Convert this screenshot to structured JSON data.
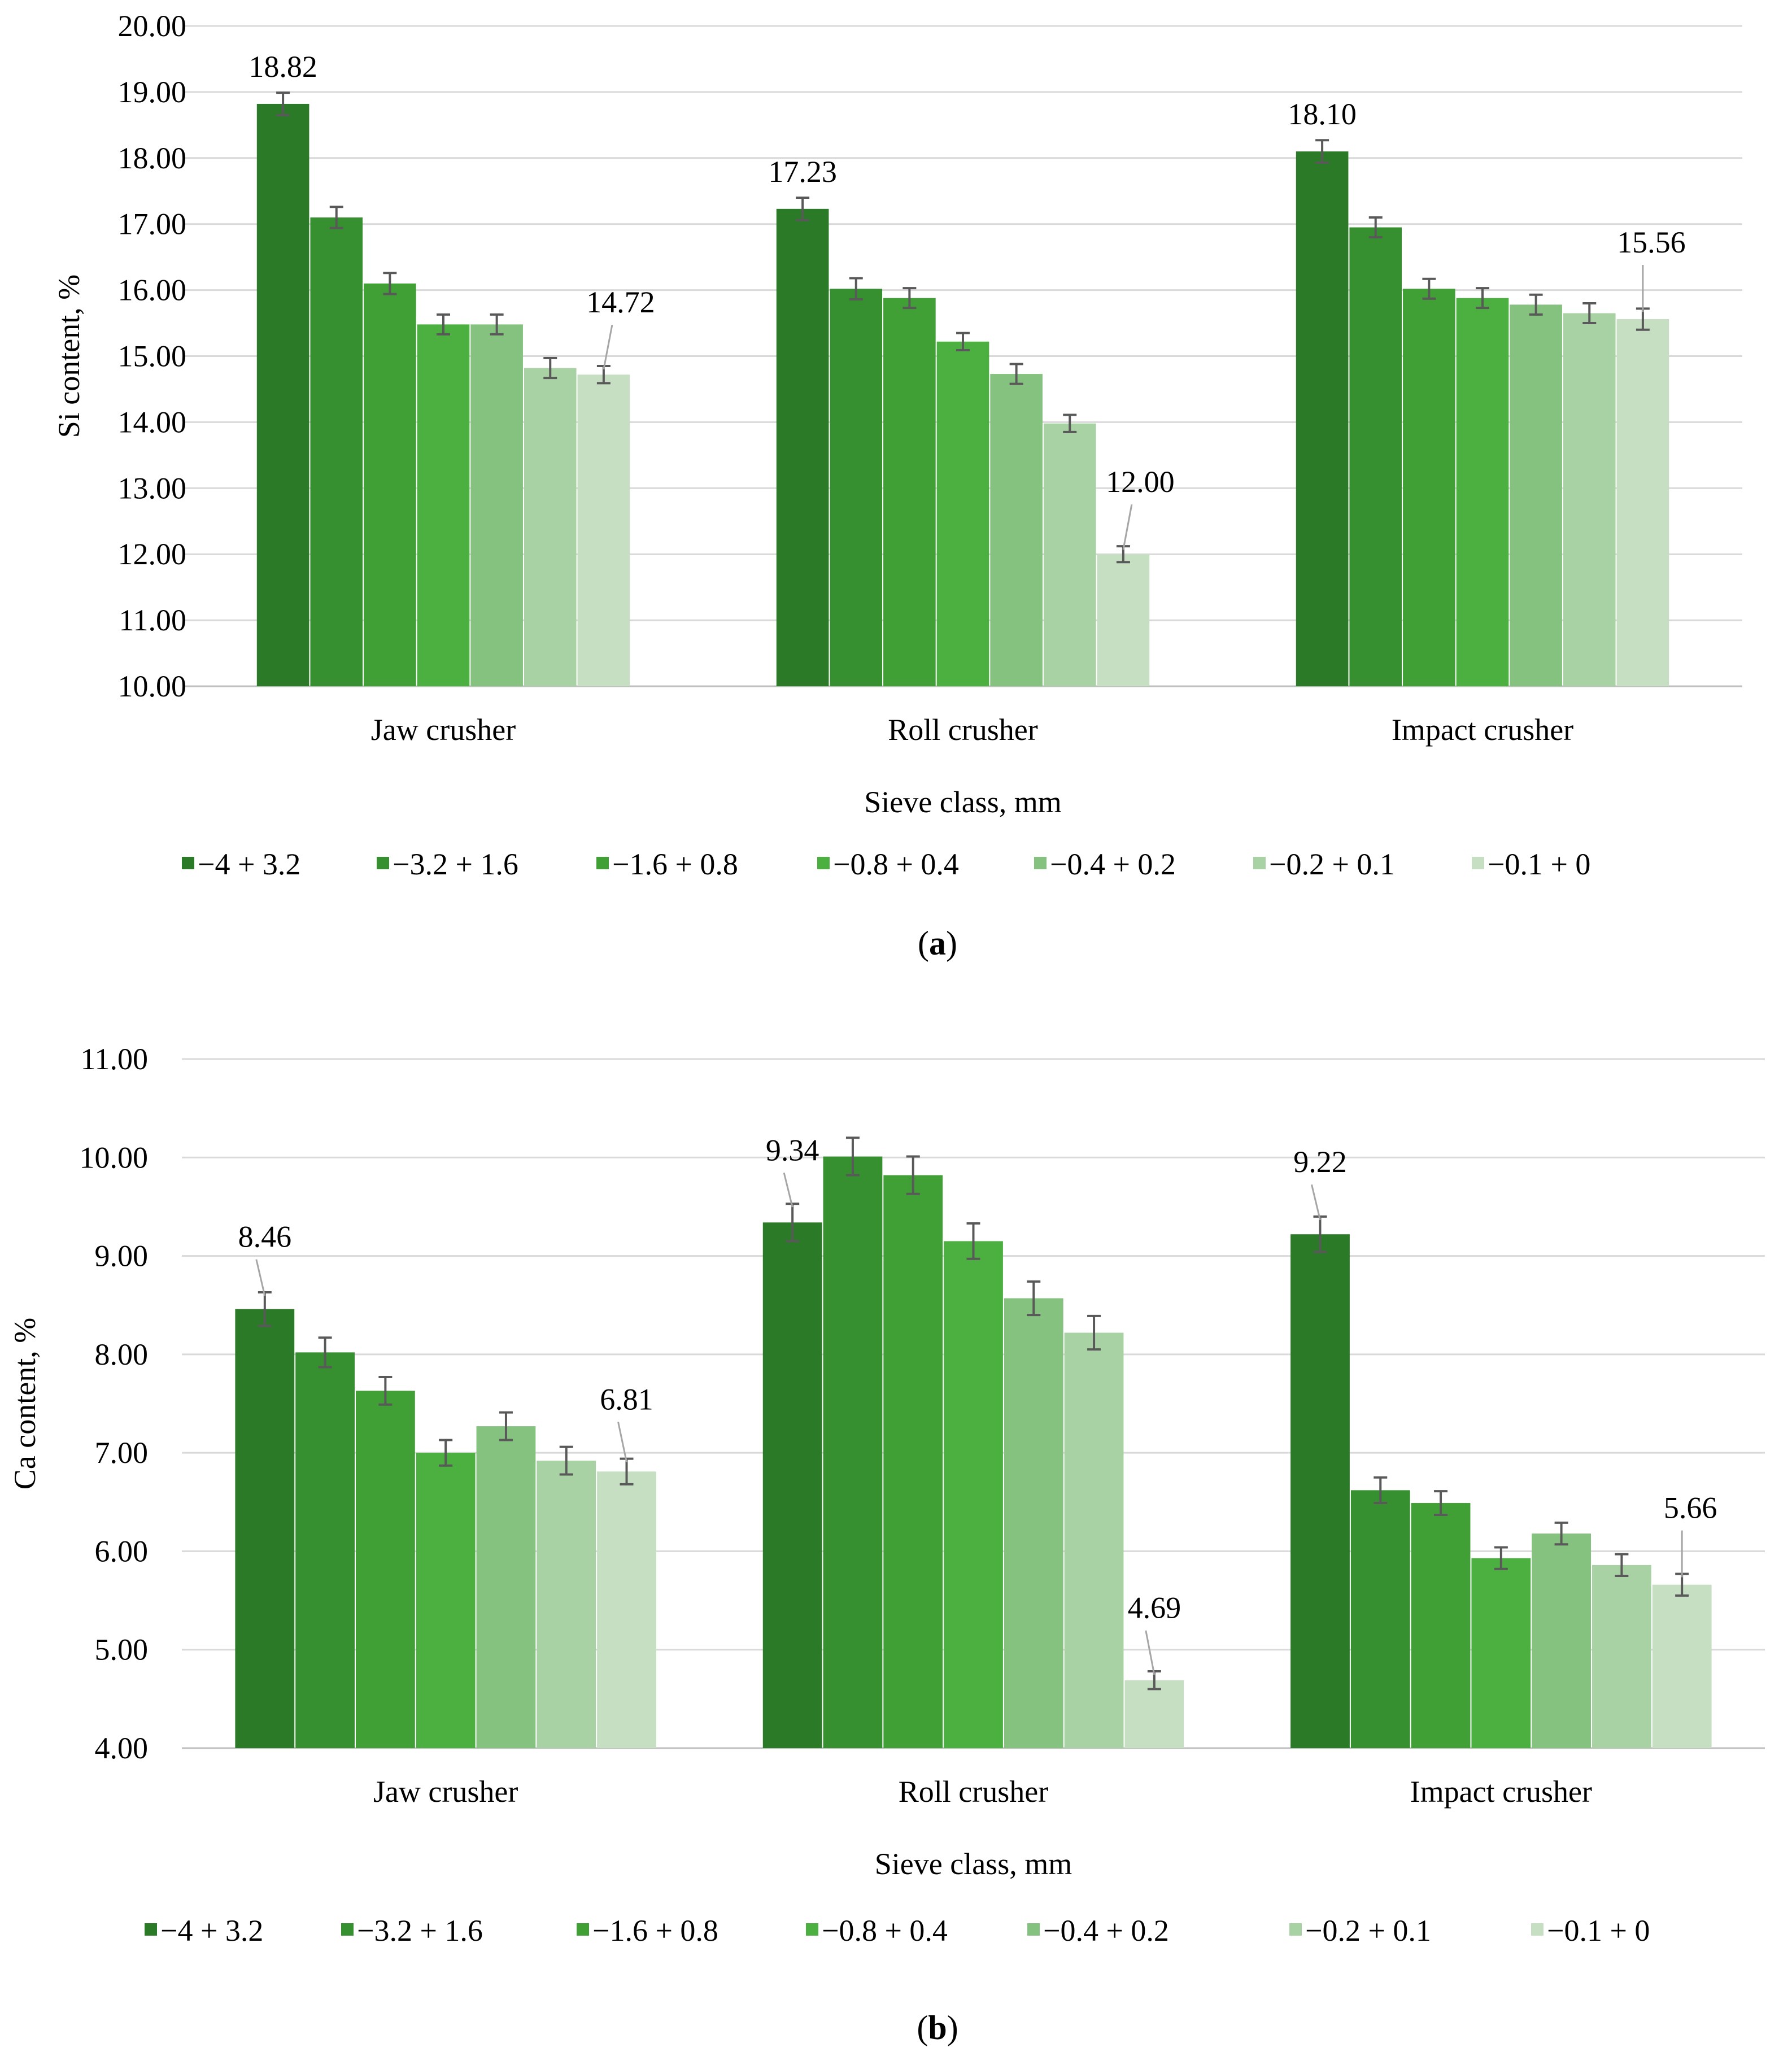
{
  "colors": {
    "series": [
      "#2b7a28",
      "#36902f",
      "#40a035",
      "#4bb03f",
      "#85c27f",
      "#a9d2a4",
      "#c6dfc3"
    ],
    "grid": "#d9d9d9",
    "error_bar": "#595959",
    "leader": "#a6a6a6"
  },
  "chart_data": [
    {
      "type": "bar",
      "panel_label": "(a)",
      "panel_letter": "a",
      "ylabel": "Si content, %",
      "xlabel": "Sieve class, mm",
      "ylim": [
        10,
        20
      ],
      "yticks": [
        10,
        11,
        12,
        13,
        14,
        15,
        16,
        17,
        18,
        19,
        20
      ],
      "ytick_labels": [
        "10.00",
        "11.00",
        "12.00",
        "13.00",
        "14.00",
        "15.00",
        "16.00",
        "17.00",
        "18.00",
        "19.00",
        "20.00"
      ],
      "grid": true,
      "legend_position": "bottom",
      "categories": [
        "Jaw crusher",
        "Roll crusher",
        "Impact crusher"
      ],
      "series": [
        {
          "name": "−4 + 3.2",
          "values": [
            18.82,
            17.23,
            18.1
          ],
          "errors": [
            0.17,
            0.17,
            0.17
          ]
        },
        {
          "name": "−3.2 + 1.6",
          "values": [
            17.1,
            16.02,
            16.95
          ],
          "errors": [
            0.16,
            0.16,
            0.15
          ]
        },
        {
          "name": "−1.6 + 0.8",
          "values": [
            16.1,
            15.88,
            16.02
          ],
          "errors": [
            0.16,
            0.15,
            0.15
          ]
        },
        {
          "name": "−0.8 + 0.4",
          "values": [
            15.48,
            15.22,
            15.88
          ],
          "errors": [
            0.15,
            0.13,
            0.15
          ]
        },
        {
          "name": "−0.4 + 0.2",
          "values": [
            15.48,
            14.73,
            15.78
          ],
          "errors": [
            0.15,
            0.15,
            0.15
          ]
        },
        {
          "name": "−0.2 + 0.1",
          "values": [
            14.82,
            13.98,
            15.65
          ],
          "errors": [
            0.15,
            0.13,
            0.15
          ]
        },
        {
          "name": "−0.1 + 0",
          "values": [
            14.72,
            12.0,
            15.56
          ],
          "errors": [
            0.13,
            0.12,
            0.16
          ]
        }
      ],
      "data_labels": [
        {
          "series": 0,
          "category": 0,
          "text": "18.82",
          "leader": false
        },
        {
          "series": 6,
          "category": 0,
          "text": "14.72",
          "leader": true
        },
        {
          "series": 0,
          "category": 1,
          "text": "17.23",
          "leader": false
        },
        {
          "series": 6,
          "category": 1,
          "text": "12.00",
          "leader": true
        },
        {
          "series": 0,
          "category": 2,
          "text": "18.10",
          "leader": false
        },
        {
          "series": 6,
          "category": 2,
          "text": "15.56",
          "leader": true
        }
      ]
    },
    {
      "type": "bar",
      "panel_label": "(b)",
      "panel_letter": "b",
      "ylabel": "Ca content, %",
      "xlabel": "Sieve class, mm",
      "ylim": [
        4,
        11
      ],
      "yticks": [
        4,
        5,
        6,
        7,
        8,
        9,
        10,
        11
      ],
      "ytick_labels": [
        "4.00",
        "5.00",
        "6.00",
        "7.00",
        "8.00",
        "9.00",
        "10.00",
        "11.00"
      ],
      "grid": true,
      "legend_position": "bottom",
      "categories": [
        "Jaw crusher",
        "Roll crusher",
        "Impact crusher"
      ],
      "series": [
        {
          "name": "−4 + 3.2",
          "values": [
            8.46,
            9.34,
            9.22
          ],
          "errors": [
            0.17,
            0.19,
            0.18
          ]
        },
        {
          "name": "−3.2 + 1.6",
          "values": [
            8.02,
            10.01,
            6.62
          ],
          "errors": [
            0.15,
            0.19,
            0.13
          ]
        },
        {
          "name": "−1.6 + 0.8",
          "values": [
            7.63,
            9.82,
            6.49
          ],
          "errors": [
            0.14,
            0.19,
            0.12
          ]
        },
        {
          "name": "−0.8 + 0.4",
          "values": [
            7.0,
            9.15,
            5.93
          ],
          "errors": [
            0.13,
            0.18,
            0.11
          ]
        },
        {
          "name": "−0.4 + 0.2",
          "values": [
            7.27,
            8.57,
            6.18
          ],
          "errors": [
            0.14,
            0.17,
            0.11
          ]
        },
        {
          "name": "−0.2 + 0.1",
          "values": [
            6.92,
            8.22,
            5.86
          ],
          "errors": [
            0.14,
            0.17,
            0.11
          ]
        },
        {
          "name": "−0.1 + 0",
          "values": [
            6.81,
            4.69,
            5.66
          ],
          "errors": [
            0.13,
            0.09,
            0.11
          ]
        }
      ],
      "data_labels": [
        {
          "series": 0,
          "category": 0,
          "text": "8.46",
          "leader": true
        },
        {
          "series": 6,
          "category": 0,
          "text": "6.81",
          "leader": true
        },
        {
          "series": 0,
          "category": 1,
          "text": "9.34",
          "leader": true
        },
        {
          "series": 6,
          "category": 1,
          "text": "4.69",
          "leader": true
        },
        {
          "series": 0,
          "category": 2,
          "text": "9.22",
          "leader": true
        },
        {
          "series": 6,
          "category": 2,
          "text": "5.66",
          "leader": true
        }
      ]
    }
  ]
}
